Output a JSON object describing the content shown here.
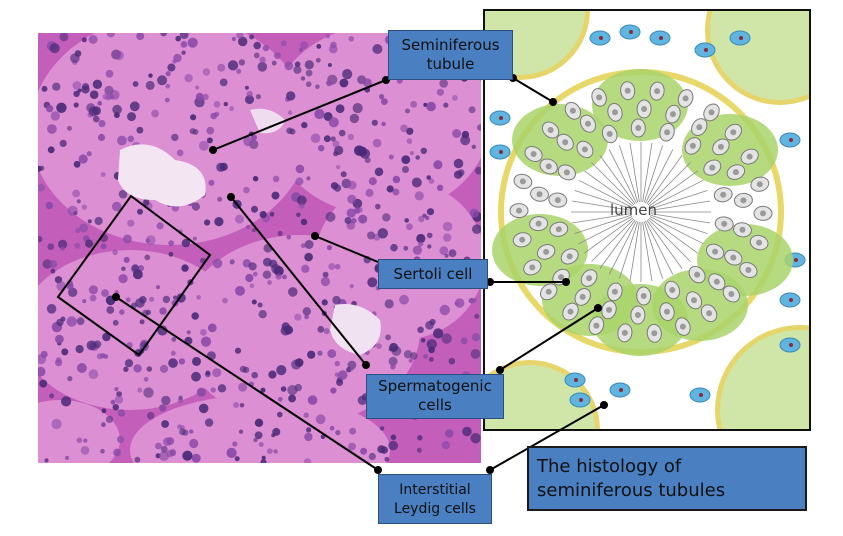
{
  "labels": {
    "seminiferous_tubule": [
      "Seminiferous",
      "tubule"
    ],
    "sertoli_cell": "Sertoli cell",
    "spermatogenic_cells": [
      "Spermatogenic",
      "cells"
    ],
    "interstitial_leydig": [
      "Interstitial",
      "Leydig cells"
    ],
    "lumen": "lumen"
  },
  "title": [
    "The histology of",
    "seminiferous tubules"
  ],
  "colors": {
    "label_fill": "#4a7fc1",
    "tissue_pink": "#d477c8",
    "nucleus_purple": "#4a2a78",
    "cytoplasm_green": "#a9d36a",
    "membrane_yellow": "#e6d56a",
    "leydig_blue": "#5fb4e0"
  }
}
